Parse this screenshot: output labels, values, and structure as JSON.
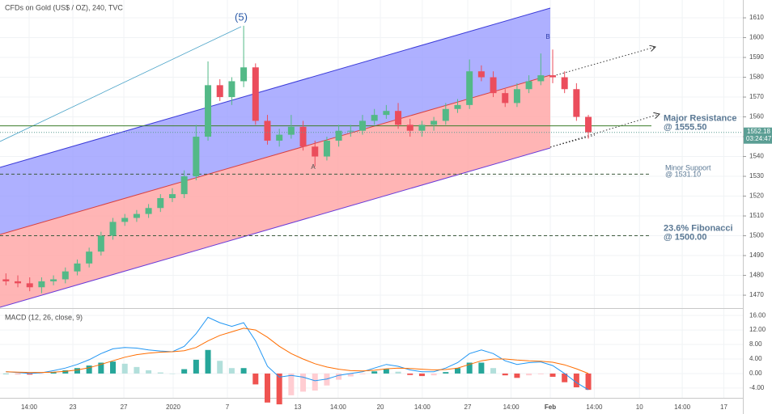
{
  "chart_data": [
    {
      "type": "candlestick",
      "title": "CFDs on Gold (US$ / OZ), 240, TVC",
      "x": [
        0,
        1,
        2,
        3,
        4,
        5,
        6,
        7,
        8,
        9,
        10,
        11,
        12,
        13,
        14,
        15,
        16,
        17,
        18,
        19,
        20,
        21,
        22,
        23,
        24,
        25,
        26,
        27,
        28,
        29,
        30,
        31,
        32,
        33,
        34,
        35,
        36,
        37,
        38,
        39,
        40,
        41,
        42,
        43,
        44,
        45,
        46,
        47,
        48,
        49
      ],
      "open": [
        1478,
        1477,
        1476,
        1474,
        1477,
        1478,
        1482,
        1486,
        1492,
        1500,
        1507,
        1509,
        1511,
        1514,
        1519,
        1521,
        1530,
        1550,
        1576,
        1570,
        1578,
        1585,
        1558,
        1548,
        1551,
        1555,
        1545,
        1540,
        1548,
        1553,
        1553,
        1558,
        1561,
        1563,
        1556,
        1553,
        1556,
        1558,
        1564,
        1566,
        1583,
        1580,
        1572,
        1567,
        1574,
        1578,
        1581,
        1580,
        1574,
        1560
      ],
      "high": [
        1481,
        1480,
        1479,
        1479,
        1480,
        1484,
        1488,
        1494,
        1502,
        1509,
        1511,
        1513,
        1516,
        1521,
        1524,
        1533,
        1556,
        1588,
        1579,
        1580,
        1606,
        1587,
        1561,
        1554,
        1561,
        1558,
        1548,
        1550,
        1556,
        1556,
        1561,
        1564,
        1566,
        1567,
        1559,
        1558,
        1560,
        1567,
        1569,
        1589,
        1586,
        1583,
        1574,
        1577,
        1581,
        1592,
        1594,
        1583,
        1577,
        1561
      ],
      "low": [
        1475,
        1474,
        1472,
        1471,
        1475,
        1476,
        1480,
        1484,
        1490,
        1498,
        1505,
        1507,
        1509,
        1512,
        1517,
        1519,
        1528,
        1548,
        1568,
        1566,
        1575,
        1556,
        1546,
        1545,
        1549,
        1543,
        1535,
        1538,
        1545,
        1550,
        1551,
        1556,
        1559,
        1554,
        1550,
        1550,
        1553,
        1556,
        1562,
        1564,
        1578,
        1570,
        1565,
        1565,
        1572,
        1576,
        1577,
        1572,
        1558,
        1549
      ],
      "close": [
        1477,
        1476,
        1474,
        1477,
        1478,
        1482,
        1486,
        1492,
        1500,
        1507,
        1509,
        1511,
        1514,
        1519,
        1521,
        1530,
        1550,
        1576,
        1570,
        1578,
        1585,
        1558,
        1548,
        1551,
        1555,
        1545,
        1540,
        1548,
        1553,
        1553,
        1558,
        1561,
        1563,
        1556,
        1553,
        1556,
        1558,
        1564,
        1566,
        1583,
        1580,
        1572,
        1567,
        1574,
        1578,
        1581,
        1580,
        1574,
        1560,
        1552.18
      ],
      "up_color": "#53b987",
      "down_color": "#eb4d5c",
      "xlim": [
        -0.5,
        62
      ],
      "ylim": [
        1463.9,
        1619
      ],
      "yticks": [
        1470,
        1480,
        1490,
        1500,
        1510,
        1520,
        1530,
        1540,
        1550,
        1560,
        1570,
        1580,
        1590,
        1600,
        1610
      ],
      "levels": [
        {
          "label": [
            "Major Resistance",
            "@ 1555.50"
          ],
          "value": 1555.5,
          "color": "#3b7d2a",
          "style": "solid"
        },
        {
          "label": [
            "Minor Support",
            "@ 1531.10"
          ],
          "value": 1531.1,
          "color": "#3d5a3d",
          "style": "dashed"
        },
        {
          "label": [
            "23.6% Fibonacci",
            "@ 1500.00"
          ],
          "value": 1500,
          "color": "#3d5a3d",
          "style": "dashed"
        }
      ],
      "annotations": [
        "(5)",
        "A",
        "B"
      ],
      "last_price": 1552.18,
      "countdown": "03:24:47",
      "grid": true
    },
    {
      "type": "macd",
      "title": "MACD (12, 26, close, 9)",
      "macd": [
        0.5,
        0.3,
        0,
        0.2,
        0.8,
        1.5,
        2.5,
        3.8,
        5.5,
        6.8,
        7.2,
        7,
        6.5,
        6.2,
        6,
        7.5,
        11,
        15.5,
        14,
        13,
        14,
        9,
        2,
        -1,
        -0.5,
        -1,
        -2,
        -1.5,
        -0.5,
        0,
        0.5,
        1.5,
        2.5,
        2,
        1,
        0.5,
        0.5,
        1.5,
        3,
        5.5,
        6.5,
        5.5,
        3.5,
        2.5,
        3,
        3.2,
        2.2,
        0,
        -2.5,
        -4.5
      ],
      "signal": [
        0.5,
        0.4,
        0.3,
        0.3,
        0.4,
        0.6,
        1,
        1.6,
        2.5,
        3.5,
        4.5,
        5.2,
        5.6,
        5.9,
        6,
        6.3,
        7.2,
        9,
        10.5,
        11.5,
        12.5,
        12,
        10,
        7.5,
        5.5,
        4,
        2.7,
        1.8,
        1.2,
        0.8,
        0.7,
        0.9,
        1.3,
        1.5,
        1.4,
        1.2,
        1,
        1.1,
        1.5,
        2.5,
        3.5,
        4,
        4,
        3.7,
        3.5,
        3.4,
        3.1,
        2.4,
        1.3,
        0
      ],
      "histogram": [
        0,
        -0.1,
        -0.3,
        -0.1,
        0.4,
        0.9,
        1.5,
        2.2,
        3,
        3.3,
        2.7,
        1.8,
        0.9,
        0.3,
        0,
        1.2,
        3.8,
        6.5,
        3.5,
        1.5,
        1.5,
        -3,
        -8,
        -8.5,
        -6,
        -5,
        -4.7,
        -3.3,
        -1.7,
        -0.8,
        -0.2,
        0.6,
        1.2,
        0.5,
        -0.4,
        -0.7,
        -0.5,
        0.4,
        1.5,
        3,
        3,
        1.5,
        -0.5,
        -1.2,
        -0.5,
        -0.2,
        -0.9,
        -2.4,
        -3.8,
        -4.5
      ],
      "macd_color": "#2196f3",
      "signal_color": "#ff6d00",
      "hist_colors": {
        "up_rising": "#26a69a",
        "up_falling": "#b2dfdb",
        "down_falling": "#ef5350",
        "down_rising": "#ffcdd2"
      },
      "ylim": [
        -6.7,
        17.6
      ],
      "yticks": [
        {
          "value": -4,
          "label": "-4.00"
        },
        {
          "value": 0,
          "label": "0.00"
        },
        {
          "value": 4,
          "label": "4.00"
        },
        {
          "value": 8,
          "label": "8.00"
        },
        {
          "value": 12,
          "label": "12.00"
        },
        {
          "value": 16,
          "label": "16.00"
        }
      ],
      "xticks": [
        {
          "value": 1.95,
          "label": "14:00"
        },
        {
          "value": 5.63,
          "label": "23"
        },
        {
          "value": 9.92,
          "label": "27"
        },
        {
          "value": 14.07,
          "label": "2020"
        },
        {
          "value": 18.63,
          "label": "7"
        },
        {
          "value": 24.55,
          "label": "13"
        },
        {
          "value": 27.95,
          "label": "14:00"
        },
        {
          "value": 31.5,
          "label": "20"
        },
        {
          "value": 35.03,
          "label": "14:00"
        },
        {
          "value": 38.85,
          "label": "27"
        },
        {
          "value": 42.5,
          "label": "14:00"
        },
        {
          "value": 45.8,
          "label": "Feb"
        },
        {
          "value": 49.5,
          "label": "14:00"
        },
        {
          "value": 53.3,
          "label": "10"
        },
        {
          "value": 56.9,
          "label": "14:00"
        },
        {
          "value": 60.4,
          "label": "17"
        }
      ]
    }
  ]
}
